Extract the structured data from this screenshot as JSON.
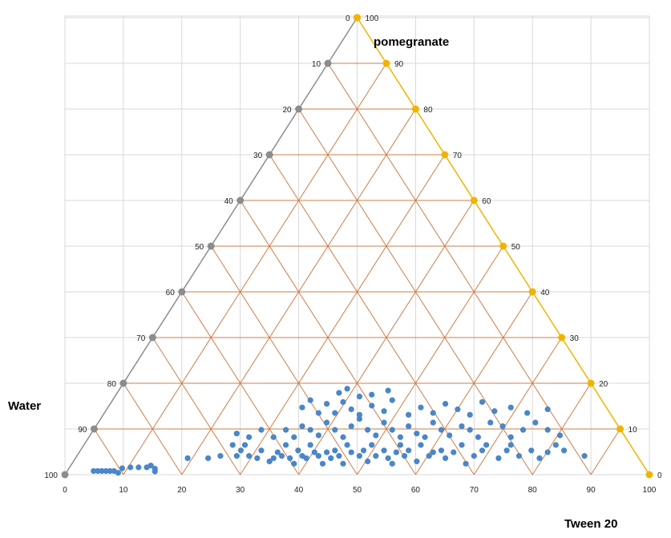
{
  "chart_data": {
    "type": "scatter",
    "subtype": "ternary",
    "axes": {
      "top_label": "pomegranate",
      "left_label": "Water",
      "bottom_label": "Tween 20"
    },
    "axis_range": [
      0,
      100
    ],
    "grid_step": 10,
    "x_ticks": [
      "0",
      "10",
      "20",
      "30",
      "40",
      "50",
      "60",
      "70",
      "80",
      "90",
      "100"
    ],
    "left_ticks": [
      "0",
      "10",
      "20",
      "30",
      "40",
      "50",
      "60",
      "70",
      "80",
      "90",
      "100"
    ],
    "right_ticks": [
      "100",
      "90",
      "80",
      "70",
      "60",
      "50",
      "40",
      "30",
      "20",
      "10",
      "0"
    ],
    "colors": {
      "points": "#4a86c8",
      "left_edge": "#8c8c8c",
      "left_markers": "#8c8c8c",
      "right_edge": "#f0b400",
      "right_markers": "#f0b400",
      "ternary_grid": "#cf7c4a",
      "background_grid": "#d9d9d9"
    },
    "x_unit": "Tween 20 (bottom scale)",
    "y_unit": "pomegranate (%)",
    "points": [
      [
        4.9,
        0.8
      ],
      [
        5.6,
        0.8
      ],
      [
        6.3,
        0.8
      ],
      [
        7,
        0.8
      ],
      [
        7.7,
        0.8
      ],
      [
        8.4,
        0.8
      ],
      [
        9.1,
        0.4
      ],
      [
        9.8,
        1.4
      ],
      [
        11.2,
        1.6
      ],
      [
        12.6,
        1.6
      ],
      [
        14,
        1.6
      ],
      [
        14.7,
        2
      ],
      [
        15.4,
        1.3
      ],
      [
        15.4,
        0.7
      ],
      [
        21,
        3.6
      ],
      [
        24.5,
        3.6
      ],
      [
        26.6,
        4.1
      ],
      [
        28.7,
        6.5
      ],
      [
        29.4,
        4.1
      ],
      [
        30.1,
        5.3
      ],
      [
        30.8,
        6.5
      ],
      [
        31.5,
        4.1
      ],
      [
        32.9,
        3.6
      ],
      [
        33.6,
        5.3
      ],
      [
        35,
        2.9
      ],
      [
        35.7,
        3.6
      ],
      [
        36.4,
        4.9
      ],
      [
        37.1,
        4.1
      ],
      [
        37.8,
        6.5
      ],
      [
        38.5,
        3.6
      ],
      [
        39.2,
        2.4
      ],
      [
        39.9,
        5.3
      ],
      [
        40.6,
        4.1
      ],
      [
        41.3,
        3.6
      ],
      [
        42,
        6.5
      ],
      [
        42.7,
        4.9
      ],
      [
        43.4,
        4.1
      ],
      [
        44.1,
        2.4
      ],
      [
        44.8,
        4.9
      ],
      [
        45.5,
        3.6
      ],
      [
        46.2,
        5.3
      ],
      [
        46.9,
        4.1
      ],
      [
        47.6,
        2.4
      ],
      [
        48.3,
        6.5
      ],
      [
        49,
        4.9
      ],
      [
        50.4,
        4.1
      ],
      [
        51.1,
        5.3
      ],
      [
        51.8,
        2.9
      ],
      [
        52.5,
        6.5
      ],
      [
        53.2,
        4.1
      ],
      [
        54.6,
        5.3
      ],
      [
        55.3,
        3.6
      ],
      [
        56,
        2.4
      ],
      [
        56.7,
        4.9
      ],
      [
        57.4,
        6.5
      ],
      [
        58.1,
        4.1
      ],
      [
        58.8,
        5.3
      ],
      [
        60.2,
        2.9
      ],
      [
        60.9,
        6.5
      ],
      [
        62.3,
        4.1
      ],
      [
        63,
        4.9
      ],
      [
        64.4,
        5.3
      ],
      [
        65.1,
        3.6
      ],
      [
        66.5,
        4.9
      ],
      [
        67.9,
        6.5
      ],
      [
        68.6,
        2.4
      ],
      [
        70,
        4.1
      ],
      [
        71.4,
        5.3
      ],
      [
        72.1,
        6.5
      ],
      [
        74.2,
        3.6
      ],
      [
        75.6,
        5.3
      ],
      [
        76.3,
        6.5
      ],
      [
        77.7,
        4.1
      ],
      [
        79.8,
        5.3
      ],
      [
        81.2,
        3.6
      ],
      [
        82.6,
        4.9
      ],
      [
        84,
        6.5
      ],
      [
        85.4,
        5.3
      ],
      [
        88.9,
        4.1
      ],
      [
        29.4,
        9
      ],
      [
        31.5,
        8.2
      ],
      [
        33.6,
        9.8
      ],
      [
        35.7,
        8.2
      ],
      [
        37.8,
        9.8
      ],
      [
        39.2,
        8.2
      ],
      [
        40.6,
        10.6
      ],
      [
        42,
        9.8
      ],
      [
        43.4,
        8.6
      ],
      [
        44.8,
        11.4
      ],
      [
        46.2,
        9.8
      ],
      [
        47.6,
        8.2
      ],
      [
        49,
        10.6
      ],
      [
        50.4,
        12.2
      ],
      [
        51.8,
        9.8
      ],
      [
        53.2,
        8.6
      ],
      [
        54.6,
        11.4
      ],
      [
        56,
        9.8
      ],
      [
        57.4,
        8.2
      ],
      [
        58.8,
        10.6
      ],
      [
        60.2,
        9
      ],
      [
        61.6,
        8.2
      ],
      [
        63,
        11.4
      ],
      [
        64.4,
        9.8
      ],
      [
        65.8,
        8.6
      ],
      [
        67.9,
        10.6
      ],
      [
        69.3,
        9.8
      ],
      [
        70.7,
        8.2
      ],
      [
        72.8,
        11.4
      ],
      [
        74.9,
        10.6
      ],
      [
        76.3,
        8.2
      ],
      [
        78.4,
        9.8
      ],
      [
        80.5,
        11.4
      ],
      [
        82.6,
        9.8
      ],
      [
        84.7,
        8.6
      ],
      [
        40.6,
        14.7
      ],
      [
        42,
        16.3
      ],
      [
        43.4,
        13.5
      ],
      [
        44.8,
        15.5
      ],
      [
        46.2,
        13.5
      ],
      [
        47.6,
        15.9
      ],
      [
        49,
        14.3
      ],
      [
        50.4,
        13.1
      ],
      [
        52.5,
        15.1
      ],
      [
        54.6,
        13.9
      ],
      [
        56,
        16.3
      ],
      [
        58.8,
        13.1
      ],
      [
        60.9,
        14.7
      ],
      [
        63,
        13.5
      ],
      [
        65.1,
        15.5
      ],
      [
        67.2,
        14.3
      ],
      [
        69.3,
        13.1
      ],
      [
        71.4,
        15.9
      ],
      [
        73.5,
        13.9
      ],
      [
        76.3,
        14.7
      ],
      [
        79.1,
        13.5
      ],
      [
        82.6,
        14.3
      ],
      [
        46.9,
        17.9
      ],
      [
        48.3,
        18.8
      ],
      [
        50.4,
        17.1
      ],
      [
        52.5,
        17.5
      ],
      [
        55.3,
        18.4
      ]
    ]
  }
}
